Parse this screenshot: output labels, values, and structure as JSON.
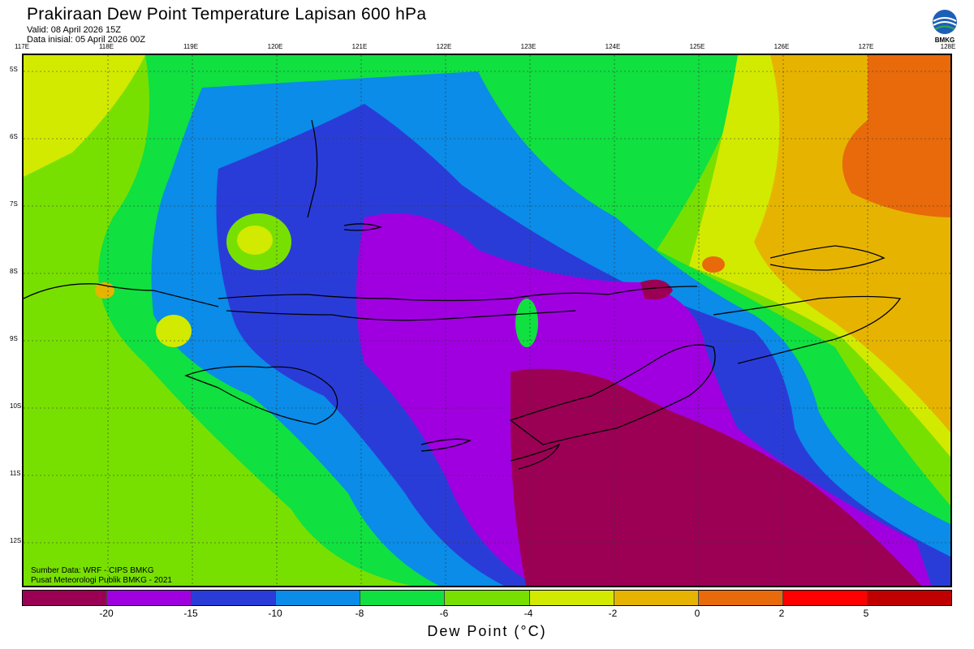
{
  "header": {
    "title": "Prakiraan Dew Point Temperature Lapisan 600 hPa",
    "valid": "Valid: 08 April 2026 15Z",
    "init": "Data inisial: 05 April 2026 00Z"
  },
  "logo": {
    "text": "BMKG",
    "icon": "bmkg-logo-icon"
  },
  "map": {
    "lon_labels": [
      "117E",
      "118E",
      "119E",
      "120E",
      "121E",
      "122E",
      "123E",
      "124E",
      "125E",
      "126E",
      "127E",
      "128E"
    ],
    "lat_labels": [
      "5S",
      "6S",
      "7S",
      "8S",
      "9S",
      "10S",
      "11S",
      "12S"
    ],
    "lon_range": [
      117,
      128
    ],
    "lat_range": [
      -4.8,
      -12.7
    ],
    "grid": true
  },
  "footer": {
    "source": "Sumber Data: WRF - CIPS BMKG",
    "institution": "Pusat Meteorologi Publik BMKG - 2021"
  },
  "colorbar": {
    "title": "Dew Point (°C)",
    "ticks": [
      "-20",
      "-15",
      "-10",
      "-8",
      "-6",
      "-4",
      "-2",
      "0",
      "2",
      "5"
    ],
    "colors": [
      "#9c0055",
      "#a000e0",
      "#2a3cd8",
      "#0a8ce8",
      "#10e040",
      "#78e000",
      "#d2ea00",
      "#e6b400",
      "#e86a0a",
      "#ff0000",
      "#c00000"
    ]
  }
}
